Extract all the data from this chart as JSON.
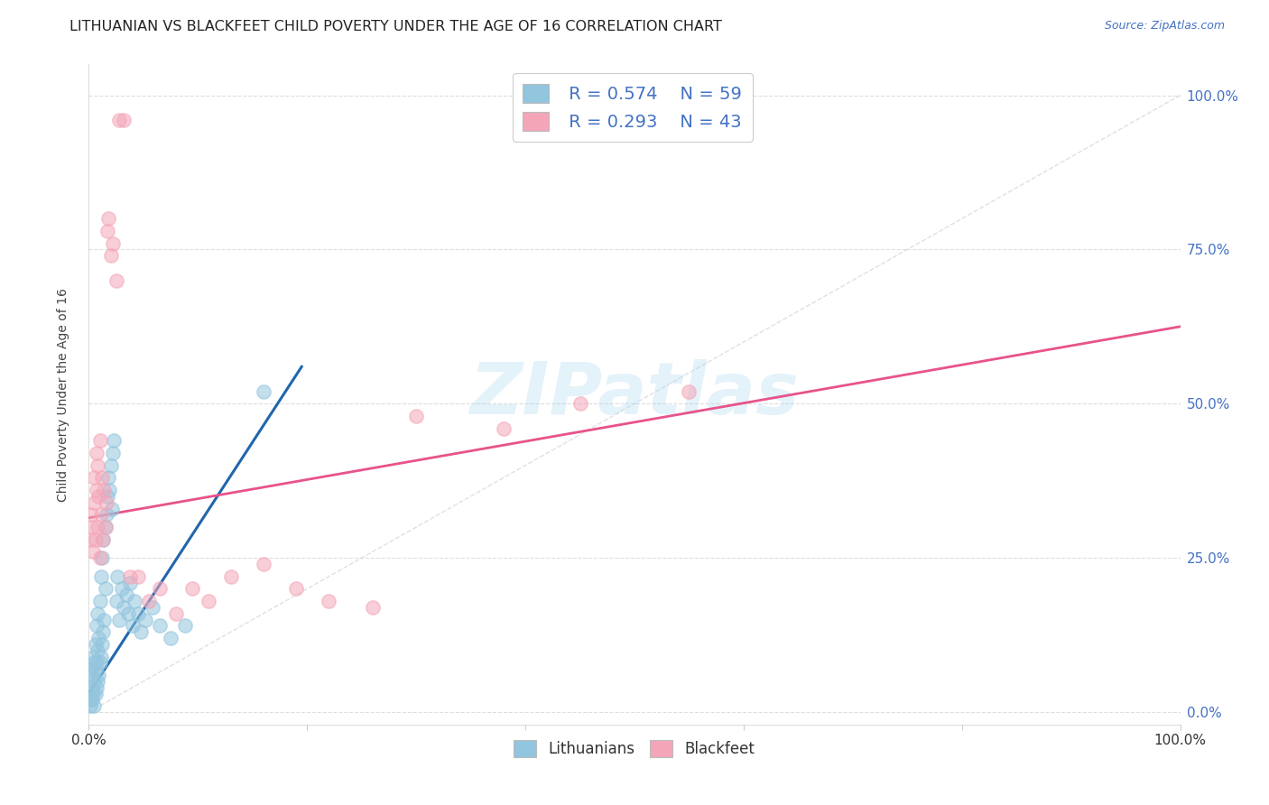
{
  "title": "LITHUANIAN VS BLACKFEET CHILD POVERTY UNDER THE AGE OF 16 CORRELATION CHART",
  "source": "Source: ZipAtlas.com",
  "ylabel": "Child Poverty Under the Age of 16",
  "legend_label1": "Lithuanians",
  "legend_label2": "Blackfeet",
  "r1": "0.574",
  "n1": "59",
  "r2": "0.293",
  "n2": "43",
  "color_blue": "#92c5de",
  "color_pink": "#f4a6b8",
  "color_blue_line": "#2166ac",
  "color_pink_line": "#e8538a",
  "color_diagonal": "#cccccc",
  "background": "#ffffff",
  "xlim": [
    0.0,
    1.0
  ],
  "ylim": [
    -0.02,
    1.05
  ],
  "blue_scatter_x": [
    0.001,
    0.002,
    0.002,
    0.003,
    0.003,
    0.004,
    0.004,
    0.005,
    0.005,
    0.005,
    0.006,
    0.006,
    0.006,
    0.007,
    0.007,
    0.007,
    0.008,
    0.008,
    0.008,
    0.009,
    0.009,
    0.01,
    0.01,
    0.011,
    0.011,
    0.012,
    0.012,
    0.013,
    0.013,
    0.014,
    0.015,
    0.015,
    0.016,
    0.017,
    0.018,
    0.019,
    0.02,
    0.021,
    0.022,
    0.023,
    0.025,
    0.026,
    0.028,
    0.03,
    0.032,
    0.034,
    0.036,
    0.038,
    0.04,
    0.042,
    0.045,
    0.048,
    0.052,
    0.058,
    0.065,
    0.075,
    0.088,
    0.16,
    0.001
  ],
  "blue_scatter_y": [
    0.02,
    0.04,
    0.07,
    0.02,
    0.06,
    0.03,
    0.09,
    0.01,
    0.05,
    0.08,
    0.03,
    0.07,
    0.11,
    0.04,
    0.08,
    0.14,
    0.05,
    0.1,
    0.16,
    0.06,
    0.12,
    0.08,
    0.18,
    0.09,
    0.22,
    0.11,
    0.25,
    0.13,
    0.28,
    0.15,
    0.2,
    0.3,
    0.32,
    0.35,
    0.38,
    0.36,
    0.4,
    0.33,
    0.42,
    0.44,
    0.18,
    0.22,
    0.15,
    0.2,
    0.17,
    0.19,
    0.16,
    0.21,
    0.14,
    0.18,
    0.16,
    0.13,
    0.15,
    0.17,
    0.14,
    0.12,
    0.14,
    0.52,
    0.01
  ],
  "pink_scatter_x": [
    0.001,
    0.002,
    0.003,
    0.004,
    0.005,
    0.005,
    0.006,
    0.007,
    0.007,
    0.008,
    0.008,
    0.009,
    0.01,
    0.01,
    0.011,
    0.012,
    0.013,
    0.014,
    0.015,
    0.016,
    0.017,
    0.018,
    0.02,
    0.022,
    0.025,
    0.028,
    0.032,
    0.038,
    0.045,
    0.055,
    0.065,
    0.08,
    0.095,
    0.11,
    0.13,
    0.16,
    0.19,
    0.22,
    0.26,
    0.3,
    0.38,
    0.45,
    0.55
  ],
  "pink_scatter_y": [
    0.28,
    0.32,
    0.3,
    0.26,
    0.34,
    0.38,
    0.28,
    0.36,
    0.42,
    0.3,
    0.4,
    0.35,
    0.25,
    0.44,
    0.32,
    0.38,
    0.28,
    0.36,
    0.3,
    0.34,
    0.78,
    0.8,
    0.74,
    0.76,
    0.7,
    0.96,
    0.96,
    0.22,
    0.22,
    0.18,
    0.2,
    0.16,
    0.2,
    0.18,
    0.22,
    0.24,
    0.2,
    0.18,
    0.17,
    0.48,
    0.46,
    0.5,
    0.52
  ],
  "blue_line_x": [
    0.0,
    0.195
  ],
  "blue_line_y": [
    0.03,
    0.56
  ],
  "pink_line_x": [
    0.0,
    1.0
  ],
  "pink_line_y": [
    0.315,
    0.625
  ],
  "watermark": "ZIPatlas",
  "ytick_vals": [
    0.0,
    0.25,
    0.5,
    0.75,
    1.0
  ],
  "ytick_labels": [
    "0.0%",
    "25.0%",
    "50.0%",
    "75.0%",
    "100.0%"
  ],
  "xtick_vals": [
    0.0,
    0.2,
    0.4,
    0.6,
    0.8,
    1.0
  ],
  "xtick_labels_bottom": [
    "0.0%",
    "",
    "",
    "",
    "",
    "100.0%"
  ],
  "grid_color": "#dddddd",
  "title_fontsize": 11.5,
  "source_fontsize": 9
}
